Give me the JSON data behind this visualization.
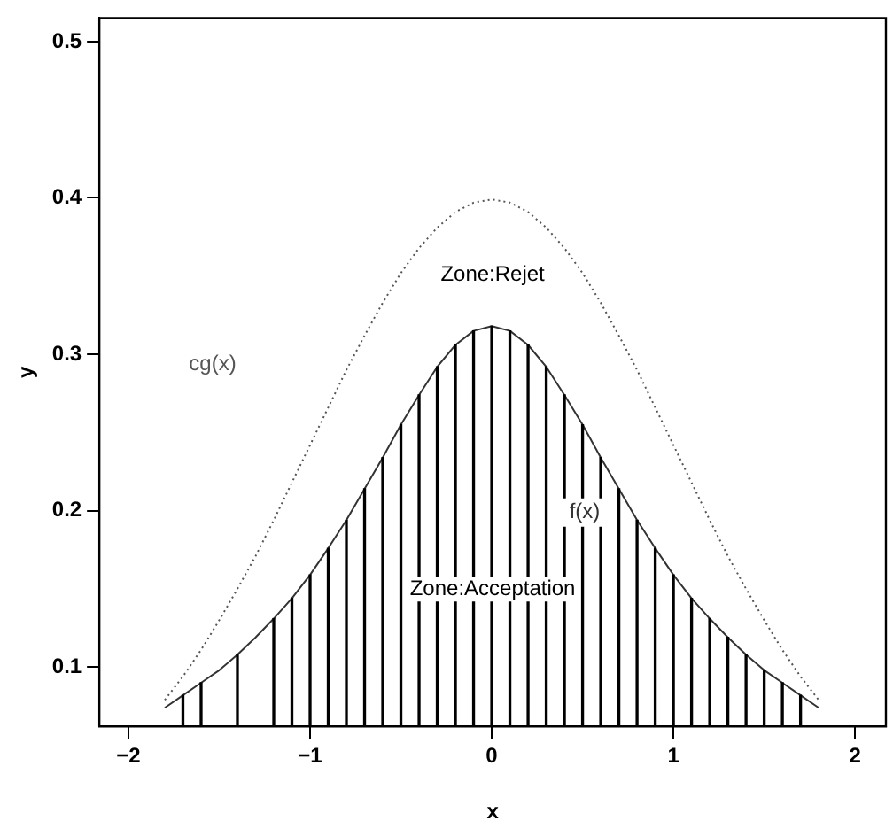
{
  "chart_data": {
    "type": "line",
    "xlabel": "x",
    "ylabel": "y",
    "xlim": [
      -2.16,
      2.17
    ],
    "ylim": [
      0.062,
      0.515
    ],
    "xticks": [
      -2,
      -1,
      0,
      1,
      2
    ],
    "yticks": [
      0.1,
      0.2,
      0.3,
      0.4,
      0.5
    ],
    "grid": false,
    "legend": false,
    "marker": "none",
    "x": [
      -1.8,
      -1.7,
      -1.6,
      -1.5,
      -1.4,
      -1.3,
      -1.2,
      -1.1,
      -1.0,
      -0.9,
      -0.8,
      -0.7,
      -0.6,
      -0.5,
      -0.4,
      -0.3,
      -0.2,
      -0.1,
      0,
      0.1,
      0.2,
      0.3,
      0.4,
      0.5,
      0.6,
      0.7,
      0.8,
      0.9,
      1.0,
      1.1,
      1.2,
      1.3,
      1.4,
      1.5,
      1.6,
      1.7,
      1.8
    ],
    "series": [
      {
        "type": "bar",
        "color": "#000000",
        "x": [
          -1.7,
          -1.6,
          -1.4,
          -1.2,
          -1.1,
          -1.0,
          -0.9,
          -0.8,
          -0.7,
          -0.6,
          -0.5,
          -0.4,
          -0.3,
          -0.2,
          -0.1,
          0,
          0.1,
          0.2,
          0.3,
          0.4,
          0.5,
          0.6,
          0.7,
          0.8,
          0.9,
          1.0,
          1.1,
          1.2,
          1.3,
          1.4,
          1.5,
          1.6,
          1.7
        ],
        "values": [
          0.082,
          0.09,
          0.108,
          0.131,
          0.144,
          0.159,
          0.176,
          0.194,
          0.214,
          0.234,
          0.255,
          0.274,
          0.292,
          0.306,
          0.315,
          0.318,
          0.315,
          0.306,
          0.292,
          0.274,
          0.255,
          0.234,
          0.214,
          0.194,
          0.176,
          0.159,
          0.144,
          0.131,
          0.119,
          0.108,
          0.098,
          0.09,
          0.082
        ]
      },
      {
        "name": "f(x)",
        "line_style": "solid",
        "color": "#333333",
        "values": [
          0.074,
          0.082,
          0.09,
          0.098,
          0.108,
          0.119,
          0.131,
          0.144,
          0.159,
          0.176,
          0.194,
          0.214,
          0.234,
          0.255,
          0.274,
          0.292,
          0.306,
          0.315,
          0.318,
          0.315,
          0.306,
          0.292,
          0.274,
          0.255,
          0.234,
          0.214,
          0.194,
          0.176,
          0.159,
          0.144,
          0.131,
          0.119,
          0.108,
          0.098,
          0.09,
          0.082,
          0.074
        ]
      },
      {
        "name": "cg(x)",
        "line_style": "dotted",
        "color": "#555555",
        "values": [
          0.079,
          0.094,
          0.111,
          0.13,
          0.15,
          0.171,
          0.194,
          0.218,
          0.242,
          0.266,
          0.29,
          0.312,
          0.333,
          0.352,
          0.368,
          0.381,
          0.391,
          0.397,
          0.399,
          0.397,
          0.391,
          0.381,
          0.368,
          0.352,
          0.333,
          0.312,
          0.29,
          0.266,
          0.242,
          0.218,
          0.194,
          0.171,
          0.15,
          0.13,
          0.111,
          0.094,
          0.079
        ]
      }
    ],
    "annotations": [
      "Zone:Rejet",
      "Zone:Acceptation"
    ]
  }
}
